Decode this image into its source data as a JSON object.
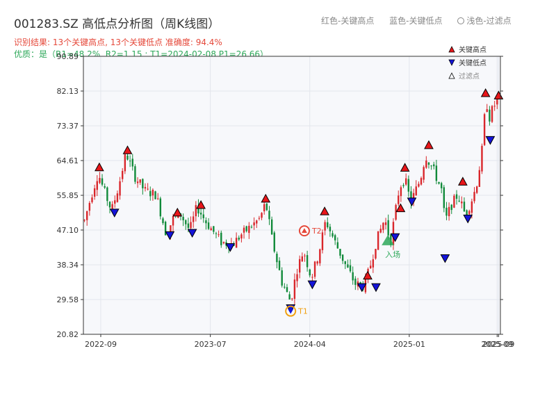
{
  "header": {
    "title": "001283.SZ 高低点分析图（周K线图）",
    "legend_top": {
      "red": "红色-关键高点",
      "blue": "蓝色-关键低点",
      "light": "浅色-过滤点"
    },
    "subtitle_result": "识别结果: 13个关键高点, 13个关键低点  准确度: 94.4%",
    "subtitle_quality": "优质：是（R1=48.2%, R2=1.15 ; T1=2024-02-08 P1=26.66）"
  },
  "colors": {
    "up": "#d9262b",
    "down": "#118a3a",
    "high_marker": "#e8161a",
    "low_marker": "#1414d8",
    "title": "#333333",
    "result_text": "#e5483a",
    "quality_text": "#2ea85a",
    "t1": "#f0a010",
    "t2": "#e5483a",
    "market": "#2ea85a"
  },
  "chart_data": {
    "type": "candlestick",
    "frequency": "weekly",
    "y_ticks": [
      20.82,
      29.58,
      38.34,
      47.1,
      55.85,
      64.61,
      73.37,
      82.13,
      90.89
    ],
    "ylim": [
      20.82,
      90.89
    ],
    "x_range": [
      "2022-07-15",
      "2025-09-10"
    ],
    "x_ticks": [
      {
        "date": "2022-09-01",
        "label": "2022-09"
      },
      {
        "date": "2023-07-01",
        "label": "2023-07"
      },
      {
        "date": "2024-04-01",
        "label": "2024-04"
      },
      {
        "date": "2025-01-01",
        "label": "2025-01"
      },
      {
        "date": "2025-09-01",
        "label": "2025-09"
      },
      {
        "date": "2025-09-05",
        "label": "2025-09"
      }
    ],
    "grid": true,
    "legend_placement": "top-right",
    "legend": [
      {
        "label": "关键高点",
        "marker": "triangle-up",
        "color": "#e8161a"
      },
      {
        "label": "关键低点",
        "marker": "triangle-down",
        "color": "#1414d8"
      },
      {
        "label": "过滤点",
        "marker": "triangle-up-hollow",
        "color": "#888888"
      }
    ],
    "path_anchors": [
      [
        "2022-07-18",
        49.5
      ],
      [
        "2022-08-05",
        55.5
      ],
      [
        "2022-08-25",
        61.5
      ],
      [
        "2022-09-10",
        57.0
      ],
      [
        "2022-10-01",
        52.0
      ],
      [
        "2022-10-20",
        58.0
      ],
      [
        "2022-11-10",
        66.5
      ],
      [
        "2022-12-05",
        60.5
      ],
      [
        "2023-01-01",
        57.0
      ],
      [
        "2023-02-01",
        56.0
      ],
      [
        "2023-03-01",
        46.0
      ],
      [
        "2023-03-20",
        50.0
      ],
      [
        "2023-04-10",
        51.0
      ],
      [
        "2023-05-05",
        47.0
      ],
      [
        "2023-05-25",
        53.0
      ],
      [
        "2023-06-20",
        49.0
      ],
      [
        "2023-08-01",
        44.0
      ],
      [
        "2023-09-01",
        43.5
      ],
      [
        "2023-09-25",
        46.0
      ],
      [
        "2023-10-15",
        47.5
      ],
      [
        "2023-11-15",
        50.0
      ],
      [
        "2023-12-01",
        54.0
      ],
      [
        "2023-12-20",
        44.0
      ],
      [
        "2024-01-15",
        34.0
      ],
      [
        "2024-02-08",
        29.0
      ],
      [
        "2024-02-25",
        37.0
      ],
      [
        "2024-03-15",
        42.0
      ],
      [
        "2024-04-05",
        35.0
      ],
      [
        "2024-04-25",
        41.0
      ],
      [
        "2024-05-15",
        49.5
      ],
      [
        "2024-06-10",
        44.0
      ],
      [
        "2024-07-10",
        38.0
      ],
      [
        "2024-08-05",
        33.5
      ],
      [
        "2024-08-30",
        33.0
      ],
      [
        "2024-09-15",
        38.0
      ],
      [
        "2024-10-01",
        44.0
      ],
      [
        "2024-10-25",
        50.0
      ],
      [
        "2024-11-10",
        44.0
      ],
      [
        "2024-12-05",
        58.0
      ],
      [
        "2024-12-20",
        60.0
      ],
      [
        "2025-01-05",
        54.0
      ],
      [
        "2025-02-01",
        60.0
      ],
      [
        "2025-02-15",
        66.0
      ],
      [
        "2025-03-10",
        62.0
      ],
      [
        "2025-04-01",
        57.0
      ],
      [
        "2025-04-10",
        49.0
      ],
      [
        "2025-04-25",
        53.0
      ],
      [
        "2025-05-15",
        56.0
      ],
      [
        "2025-06-05",
        51.0
      ],
      [
        "2025-06-20",
        54.0
      ],
      [
        "2025-07-05",
        58.0
      ],
      [
        "2025-07-20",
        66.0
      ],
      [
        "2025-08-01",
        80.0
      ],
      [
        "2025-08-12",
        75.0
      ],
      [
        "2025-08-20",
        78.0
      ],
      [
        "2025-09-05",
        80.0
      ]
    ],
    "key_highs": [
      {
        "date": "2022-08-28",
        "value": 62.9
      },
      {
        "date": "2022-11-14",
        "value": 67.2
      },
      {
        "date": "2023-04-01",
        "value": 51.5
      },
      {
        "date": "2023-06-05",
        "value": 53.4
      },
      {
        "date": "2023-12-01",
        "value": 55.0
      },
      {
        "date": "2024-05-12",
        "value": 51.8
      },
      {
        "date": "2024-09-08",
        "value": 35.6
      },
      {
        "date": "2024-12-08",
        "value": 52.6
      },
      {
        "date": "2024-12-20",
        "value": 62.8
      },
      {
        "date": "2025-02-24",
        "value": 68.5
      },
      {
        "date": "2025-05-29",
        "value": 59.3
      },
      {
        "date": "2025-07-31",
        "value": 81.6
      },
      {
        "date": "2025-09-05",
        "value": 81.0
      }
    ],
    "key_lows": [
      {
        "date": "2022-10-09",
        "value": 51.5
      },
      {
        "date": "2023-03-11",
        "value": 45.8
      },
      {
        "date": "2023-05-12",
        "value": 46.4
      },
      {
        "date": "2023-08-25",
        "value": 42.8
      },
      {
        "date": "2024-02-08",
        "value": 27.4
      },
      {
        "date": "2024-04-08",
        "value": 33.4
      },
      {
        "date": "2024-08-23",
        "value": 32.7
      },
      {
        "date": "2024-10-01",
        "value": 32.7
      },
      {
        "date": "2024-11-23",
        "value": 45.3
      },
      {
        "date": "2025-01-08",
        "value": 54.3
      },
      {
        "date": "2025-04-10",
        "value": 40.0
      },
      {
        "date": "2025-06-12",
        "value": 50.0
      },
      {
        "date": "2025-08-13",
        "value": 69.8
      }
    ],
    "annotations": [
      {
        "label": "T1",
        "date": "2024-02-08",
        "value": 26.66,
        "style": "ring",
        "color": "#f0a010"
      },
      {
        "label": "T2",
        "date": "2024-03-17",
        "value": 46.9,
        "style": "ring-triangle",
        "color": "#e5483a"
      },
      {
        "label": "入场",
        "date": "2024-11-03",
        "value": 44.5,
        "style": "triangle",
        "color": "#2ea85a"
      }
    ]
  }
}
